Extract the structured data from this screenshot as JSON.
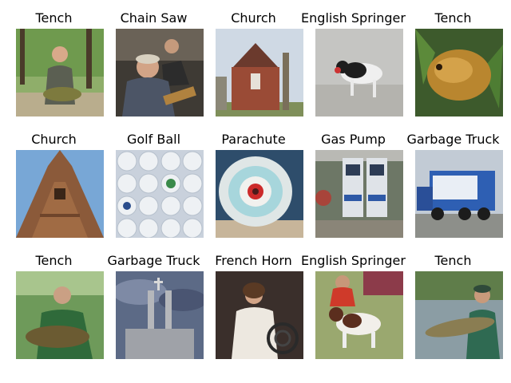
{
  "grid": {
    "rows": [
      {
        "items": [
          {
            "label": "Tench",
            "scene": "tench-man-forest"
          },
          {
            "label": "Chain Saw",
            "scene": "chainsaw-musicians"
          },
          {
            "label": "Church",
            "scene": "church-brick-tower"
          },
          {
            "label": "English Springer",
            "scene": "springer-dog-walking"
          },
          {
            "label": "Tench",
            "scene": "tench-closeup-golden"
          }
        ]
      },
      {
        "items": [
          {
            "label": "Church",
            "scene": "church-gothic-tower"
          },
          {
            "label": "Golf Ball",
            "scene": "golf-balls-tray"
          },
          {
            "label": "Parachute",
            "scene": "parachute-canopy"
          },
          {
            "label": "Gas Pump",
            "scene": "gas-pumps-station"
          },
          {
            "label": "Garbage Truck",
            "scene": "garbage-truck-blue"
          }
        ]
      },
      {
        "items": [
          {
            "label": "Tench",
            "scene": "tench-man-green-shirt"
          },
          {
            "label": "Garbage Truck",
            "scene": "church-towers-stormy"
          },
          {
            "label": "French Horn",
            "scene": "french-horn-player"
          },
          {
            "label": "English Springer",
            "scene": "springer-dog-show"
          },
          {
            "label": "Tench",
            "scene": "tench-man-lake"
          }
        ]
      }
    ]
  }
}
